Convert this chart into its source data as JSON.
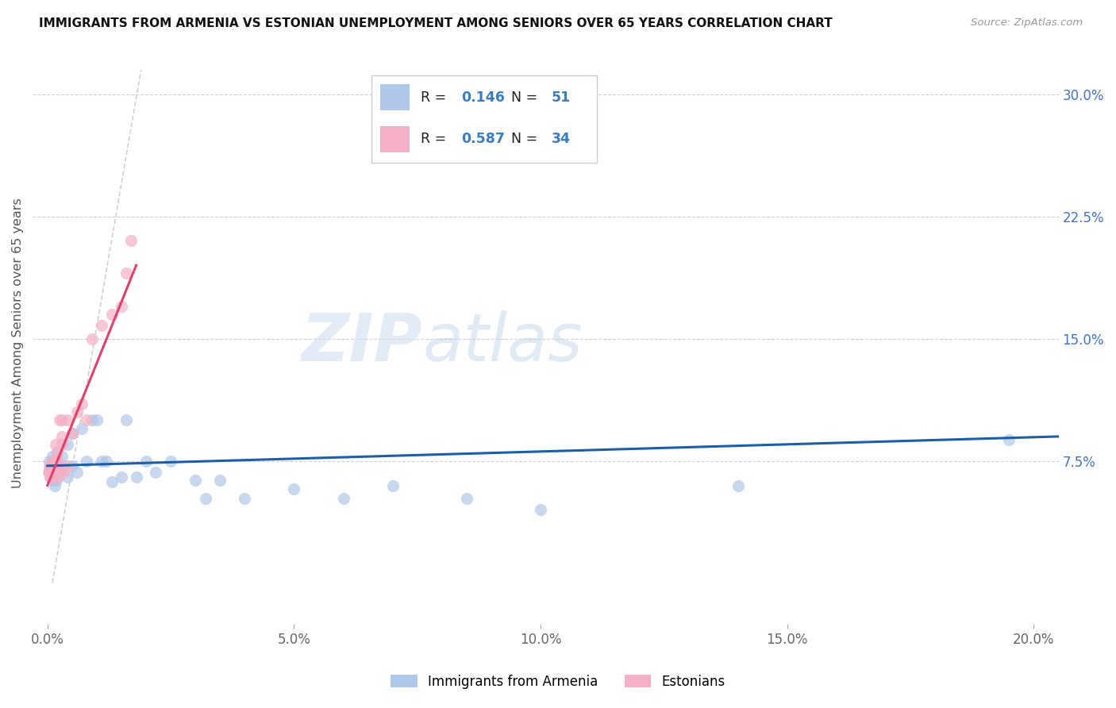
{
  "title": "IMMIGRANTS FROM ARMENIA VS ESTONIAN UNEMPLOYMENT AMONG SENIORS OVER 65 YEARS CORRELATION CHART",
  "source": "Source: ZipAtlas.com",
  "xlabel_ticks": [
    "0.0%",
    "5.0%",
    "10.0%",
    "15.0%",
    "20.0%"
  ],
  "xlabel_tick_vals": [
    0.0,
    0.05,
    0.1,
    0.15,
    0.2
  ],
  "ylabel_ticks": [
    "7.5%",
    "15.0%",
    "22.5%",
    "30.0%"
  ],
  "ylabel_tick_vals": [
    0.075,
    0.15,
    0.225,
    0.3
  ],
  "xlim": [
    -0.003,
    0.205
  ],
  "ylim": [
    -0.025,
    0.32
  ],
  "ylabel": "Unemployment Among Seniors over 65 years",
  "legend_label_blue": "Immigrants from Armenia",
  "legend_label_pink": "Estonians",
  "R_blue": "0.146",
  "N_blue": "51",
  "R_pink": "0.587",
  "N_pink": "34",
  "blue_color": "#aec6e8",
  "blue_line_color": "#1a5fa8",
  "pink_color": "#f4b0c4",
  "pink_line_color": "#e0406a",
  "dashed_line_color": "#d0d0d0",
  "watermark_zip": "ZIP",
  "watermark_atlas": "atlas",
  "blue_scatter_x": [
    0.0003,
    0.0004,
    0.0005,
    0.0006,
    0.0007,
    0.0008,
    0.0009,
    0.001,
    0.001,
    0.0012,
    0.0013,
    0.0014,
    0.0015,
    0.0016,
    0.0017,
    0.0018,
    0.002,
    0.002,
    0.0022,
    0.0025,
    0.003,
    0.003,
    0.004,
    0.004,
    0.005,
    0.005,
    0.006,
    0.007,
    0.008,
    0.009,
    0.01,
    0.011,
    0.012,
    0.013,
    0.015,
    0.016,
    0.018,
    0.02,
    0.022,
    0.025,
    0.03,
    0.032,
    0.035,
    0.04,
    0.05,
    0.06,
    0.07,
    0.085,
    0.1,
    0.14,
    0.195
  ],
  "blue_scatter_y": [
    0.075,
    0.068,
    0.072,
    0.065,
    0.07,
    0.073,
    0.067,
    0.063,
    0.078,
    0.072,
    0.065,
    0.069,
    0.06,
    0.071,
    0.074,
    0.063,
    0.075,
    0.08,
    0.072,
    0.068,
    0.078,
    0.072,
    0.085,
    0.065,
    0.092,
    0.072,
    0.068,
    0.095,
    0.075,
    0.1,
    0.1,
    0.075,
    0.075,
    0.062,
    0.065,
    0.1,
    0.065,
    0.075,
    0.068,
    0.075,
    0.063,
    0.052,
    0.063,
    0.052,
    0.058,
    0.052,
    0.06,
    0.052,
    0.045,
    0.06,
    0.088
  ],
  "pink_scatter_x": [
    0.0002,
    0.0003,
    0.0005,
    0.0006,
    0.0008,
    0.001,
    0.001,
    0.0012,
    0.0013,
    0.0015,
    0.0016,
    0.0017,
    0.0018,
    0.002,
    0.002,
    0.0022,
    0.0023,
    0.0025,
    0.003,
    0.003,
    0.003,
    0.0032,
    0.004,
    0.004,
    0.005,
    0.006,
    0.007,
    0.008,
    0.009,
    0.011,
    0.013,
    0.015,
    0.016,
    0.017
  ],
  "pink_scatter_y": [
    0.068,
    0.072,
    0.065,
    0.07,
    0.072,
    0.075,
    0.065,
    0.07,
    0.065,
    0.075,
    0.085,
    0.07,
    0.075,
    0.075,
    0.08,
    0.065,
    0.068,
    0.1,
    0.085,
    0.09,
    0.1,
    0.068,
    0.1,
    0.072,
    0.092,
    0.105,
    0.11,
    0.1,
    0.15,
    0.158,
    0.165,
    0.17,
    0.19,
    0.21
  ],
  "blue_trend_x": [
    0.0,
    0.205
  ],
  "blue_trend_y": [
    0.072,
    0.09
  ],
  "pink_trend_x": [
    0.0,
    0.018
  ],
  "pink_trend_y": [
    0.06,
    0.195
  ]
}
